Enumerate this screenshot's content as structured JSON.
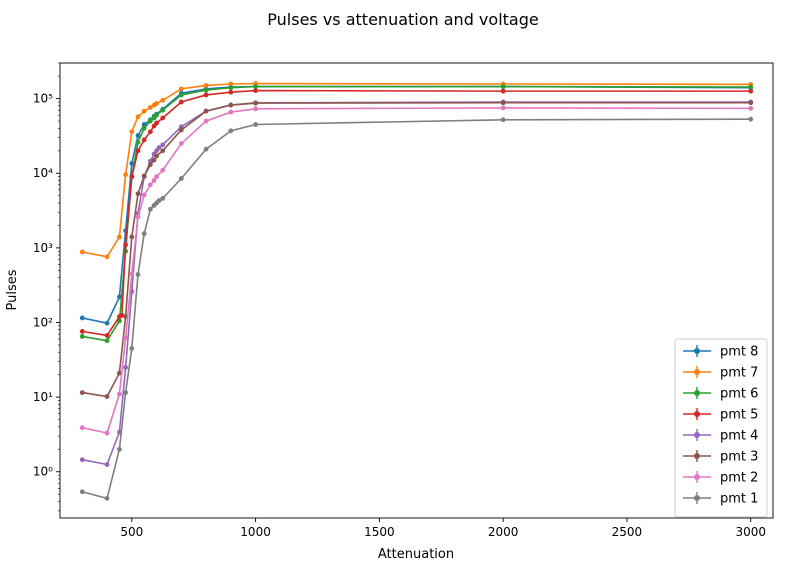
{
  "chart_data": {
    "type": "line",
    "title": "Pulses vs attenuation and voltage",
    "xlabel": "Attenuation",
    "ylabel": "Pulses",
    "xlim": [
      210,
      3090
    ],
    "ylim": [
      0.24,
      300000
    ],
    "yscale": "log",
    "x_ticks": [
      500,
      1000,
      1500,
      2000,
      2500,
      3000
    ],
    "x_tick_labels": [
      "500",
      "1000",
      "1500",
      "2000",
      "2500",
      "3000"
    ],
    "y_ticks": [
      1,
      10,
      100,
      1000,
      10000,
      100000
    ],
    "y_tick_labels": [
      "10⁰",
      "10¹",
      "10²",
      "10³",
      "10⁴",
      "10⁵"
    ],
    "legend_position": "lower-right",
    "grid": false,
    "series": [
      {
        "name": "pmt 8",
        "color": "#1f77b4",
        "x": [
          300,
          400,
          450,
          475,
          500,
          525,
          550,
          575,
          590,
          600,
          625,
          700,
          800,
          900,
          1000,
          2000,
          3000
        ],
        "y": [
          115,
          98,
          220,
          1700,
          13500,
          32000,
          45000,
          52000,
          58000,
          62000,
          72000,
          118000,
          135000,
          143000,
          145000,
          145000,
          140000
        ]
      },
      {
        "name": "pmt 7",
        "color": "#ff7f0e",
        "x": [
          300,
          400,
          450,
          475,
          500,
          525,
          550,
          575,
          590,
          600,
          625,
          700,
          800,
          900,
          1000,
          2000,
          3000
        ],
        "y": [
          880,
          760,
          1400,
          9600,
          36000,
          57000,
          68000,
          76000,
          82000,
          86000,
          95000,
          135000,
          150000,
          157000,
          159000,
          157000,
          155000
        ]
      },
      {
        "name": "pmt 6",
        "color": "#2ca02c",
        "x": [
          300,
          400,
          450,
          475,
          500,
          525,
          550,
          575,
          590,
          600,
          625,
          700,
          800,
          900,
          1000,
          2000,
          3000
        ],
        "y": [
          65,
          57,
          105,
          900,
          9000,
          26000,
          40000,
          50000,
          55000,
          60000,
          70000,
          112000,
          130000,
          140000,
          145000,
          145000,
          143000
        ]
      },
      {
        "name": "pmt 5",
        "color": "#d62728",
        "x": [
          300,
          400,
          450,
          460,
          475,
          500,
          525,
          550,
          575,
          590,
          600,
          625,
          700,
          800,
          900,
          1000,
          2000,
          3000
        ],
        "y": [
          76,
          67,
          120,
          125,
          1100,
          9000,
          20000,
          28000,
          36000,
          43000,
          47000,
          55000,
          90000,
          112000,
          122000,
          128000,
          126000,
          126000
        ]
      },
      {
        "name": "pmt 4",
        "color": "#9467bd",
        "x": [
          300,
          400,
          450,
          475,
          500,
          525,
          550,
          575,
          590,
          600,
          610,
          625,
          700,
          800,
          900,
          1000,
          2000,
          3000
        ],
        "y": [
          1.45,
          1.25,
          3.4,
          25,
          260,
          2900,
          9000,
          14500,
          18000,
          20000,
          22000,
          24000,
          42000,
          68000,
          82000,
          88000,
          90000,
          90000
        ]
      },
      {
        "name": "pmt 3",
        "color": "#8c564b",
        "x": [
          300,
          400,
          450,
          475,
          500,
          525,
          550,
          575,
          590,
          600,
          625,
          700,
          800,
          900,
          1000,
          2000,
          3000
        ],
        "y": [
          11.5,
          10.2,
          21,
          120,
          1400,
          5300,
          9200,
          13000,
          15000,
          17000,
          20000,
          38000,
          68000,
          82000,
          87000,
          88000,
          88000
        ]
      },
      {
        "name": "pmt 2",
        "color": "#e377c2",
        "x": [
          300,
          400,
          450,
          475,
          500,
          525,
          550,
          575,
          590,
          600,
          625,
          700,
          800,
          900,
          1000,
          2000,
          3000
        ],
        "y": [
          3.9,
          3.3,
          11,
          62,
          450,
          2600,
          5100,
          7000,
          8000,
          9000,
          11000,
          25000,
          50000,
          66000,
          73000,
          75000,
          74000
        ]
      },
      {
        "name": "pmt 1",
        "color": "#7f7f7f",
        "x": [
          300,
          400,
          450,
          475,
          500,
          525,
          550,
          575,
          590,
          600,
          610,
          625,
          700,
          800,
          900,
          1000,
          2000,
          3000
        ],
        "y": [
          0.54,
          0.44,
          2.0,
          11.5,
          45,
          440,
          1550,
          3300,
          3700,
          4000,
          4300,
          4600,
          8500,
          21000,
          37000,
          45000,
          52000,
          53000
        ]
      }
    ]
  }
}
